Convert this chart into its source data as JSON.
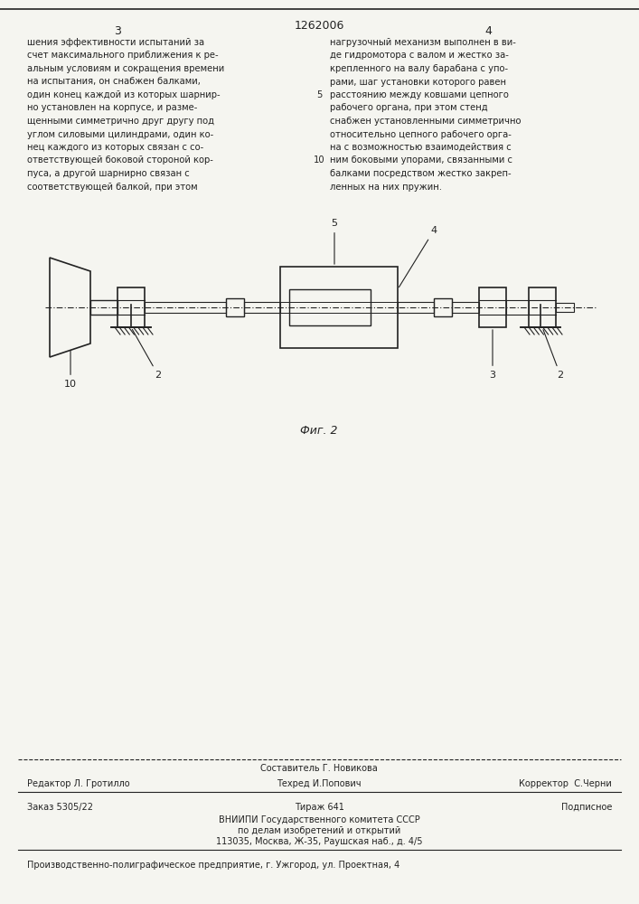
{
  "bg_color": "#f5f5f0",
  "page_number_center": "1262006",
  "page_col_left": "3",
  "page_col_right": "4",
  "text_col_left": [
    "шения эффективности испытаний за",
    "счет максимального приближения к ре-",
    "альным условиям и сокращения времени",
    "на испытания, он снабжен балками,",
    "один конец каждой из которых шарнир-",
    "но установлен на корпусе, и разме-",
    "щенными симметрично друг другу под",
    "углом силовыми цилиндрами, один ко-",
    "нец каждого из которых связан с со-",
    "ответствующей боковой стороной кор-",
    "пуса, а другой шарнирно связан с",
    "соответствующей балкой, при этом"
  ],
  "text_col_right": [
    "нагрузочный механизм выполнен в ви-",
    "де гидромотора с валом и жестко за-",
    "крепленного на валу барабана с упо-",
    "рами, шаг установки которого равен",
    "расстоянию между ковшами цепного",
    "рабочего органа, при этом стенд",
    "снабжен установленными симметрично",
    "относительно цепного рабочего орга-",
    "на с возможностью взаимодействия с",
    "ним боковыми упорами, связанными с",
    "балками посредством жестко закреп-",
    "ленных на них пружин."
  ],
  "line_number_5": "5",
  "line_number_10": "10",
  "fig_caption": "Фиг. 2",
  "label_10": "10",
  "label_2a": "2",
  "label_5": "5",
  "label_4": "4",
  "label_3": "3",
  "label_2b": "2",
  "footer_line1_left": "Редактор Л. Гротилло",
  "footer_line1_center": "Техред И.Попович",
  "footer_line1_right": "Корректор  С.Черни",
  "footer_line2_left": "Заказ 5305/22",
  "footer_line2_center": "Тираж 641",
  "footer_line2_right": "Подписное",
  "footer_line3": "ВНИИПИ Государственного комитета СССР",
  "footer_line4": "по делам изобретений и открытий",
  "footer_line5": "113035, Москва, Ж-35, Раушская наб., д. 4/5",
  "footer_line6": "Производственно-полиграфическое предприятие, г. Ужгород, ул. Проектная, 4",
  "footer_composer": "Составитель Г. Новикова",
  "line_color": "#222222",
  "text_color": "#222222"
}
